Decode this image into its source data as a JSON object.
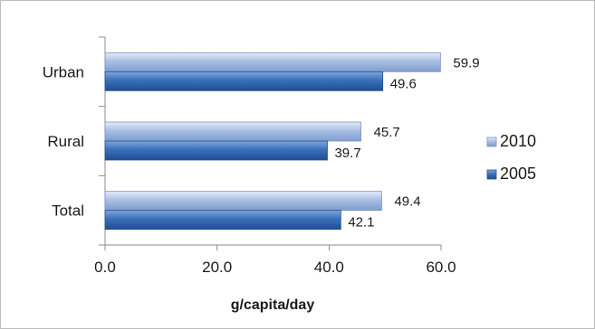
{
  "chart_data": {
    "type": "bar",
    "orientation": "horizontal",
    "categories": [
      "Urban",
      "Rural",
      "Total"
    ],
    "series": [
      {
        "name": "2010",
        "values": [
          59.9,
          45.7,
          49.4
        ],
        "color": "#9fb6dc"
      },
      {
        "name": "2005",
        "values": [
          49.6,
          39.7,
          42.1
        ],
        "color": "#3b6fba"
      }
    ],
    "xlabel": "g/capita/day",
    "ylabel": "",
    "xlim": [
      0,
      60
    ],
    "x_ticks": [
      "0.0",
      "20.0",
      "40.0",
      "60.0"
    ],
    "grid": false,
    "legend_position": "right"
  }
}
